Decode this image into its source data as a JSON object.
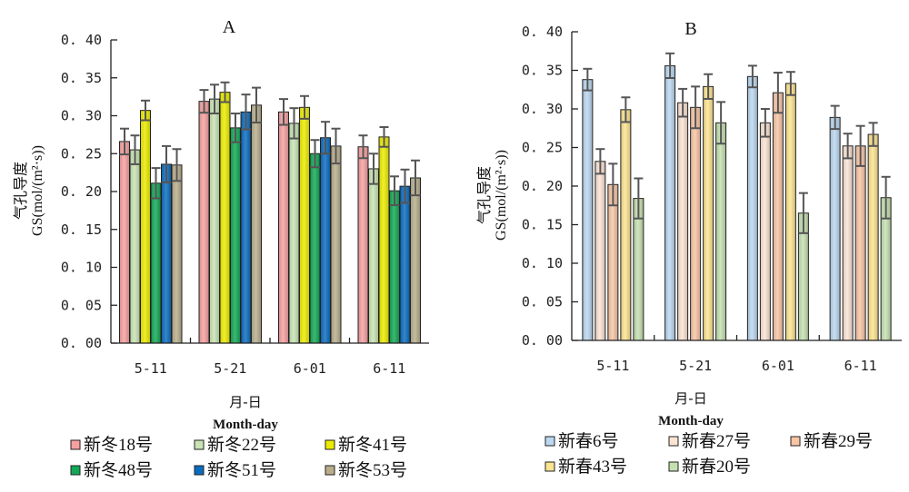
{
  "chart_data": [
    {
      "type": "bar",
      "title": "A",
      "ylabel_cn": "气孔导度",
      "ylabel": "GS(mol/(m²·s))",
      "xlabel_cn": "月-日",
      "xlabel": "Month-day",
      "ylim": [
        0,
        0.4
      ],
      "yticks": [
        "0.00",
        "0.05",
        "0.10",
        "0.15",
        "0.20",
        "0.25",
        "0.30",
        "0.35",
        "0.40"
      ],
      "categories": [
        "5-11",
        "5-21",
        "6-01",
        "6-11"
      ],
      "legend_placement": "bottom",
      "series": [
        {
          "name": "新冬18号",
          "color": "#f7a0a0",
          "values": [
            0.266,
            0.319,
            0.305,
            0.259
          ],
          "errors": [
            0.017,
            0.015,
            0.017,
            0.015
          ]
        },
        {
          "name": "新冬22号",
          "color": "#c8e4b4",
          "values": [
            0.255,
            0.322,
            0.29,
            0.23
          ],
          "errors": [
            0.019,
            0.019,
            0.02,
            0.02
          ]
        },
        {
          "name": "新冬41号",
          "color": "#ecec00",
          "values": [
            0.307,
            0.331,
            0.311,
            0.272
          ],
          "errors": [
            0.013,
            0.013,
            0.015,
            0.013
          ]
        },
        {
          "name": "新冬48号",
          "color": "#12a856",
          "values": [
            0.211,
            0.284,
            0.25,
            0.201
          ],
          "errors": [
            0.02,
            0.019,
            0.018,
            0.019
          ]
        },
        {
          "name": "新冬51号",
          "color": "#0a6cc0",
          "values": [
            0.236,
            0.305,
            0.271,
            0.207
          ],
          "errors": [
            0.024,
            0.023,
            0.021,
            0.022
          ]
        },
        {
          "name": "新冬53号",
          "color": "#b8ae8c",
          "values": [
            0.235,
            0.314,
            0.26,
            0.218
          ],
          "errors": [
            0.021,
            0.023,
            0.023,
            0.023
          ]
        }
      ]
    },
    {
      "type": "bar",
      "title": "B",
      "ylabel_cn": "气孔导度",
      "ylabel": "GS(mol/(m²·s))",
      "xlabel_cn": "月-日",
      "xlabel": "Month-day",
      "ylim": [
        0,
        0.4
      ],
      "yticks": [
        "0.00",
        "0.05",
        "0.10",
        "0.15",
        "0.20",
        "0.25",
        "0.30",
        "0.35",
        "0.40"
      ],
      "categories": [
        "5-11",
        "5-21",
        "6-01",
        "6-11"
      ],
      "legend_placement": "bottom",
      "series": [
        {
          "name": "新春6号",
          "color": "#bcd8f0",
          "values": [
            0.338,
            0.356,
            0.342,
            0.289
          ],
          "errors": [
            0.014,
            0.016,
            0.014,
            0.015
          ]
        },
        {
          "name": "新春27号",
          "color": "#fce4d4",
          "values": [
            0.232,
            0.308,
            0.282,
            0.252
          ],
          "errors": [
            0.016,
            0.018,
            0.018,
            0.016
          ]
        },
        {
          "name": "新春29号",
          "color": "#f8c6a6",
          "values": [
            0.202,
            0.302,
            0.321,
            0.252
          ],
          "errors": [
            0.027,
            0.027,
            0.026,
            0.026
          ]
        },
        {
          "name": "新春43号",
          "color": "#fce490",
          "values": [
            0.299,
            0.329,
            0.333,
            0.267
          ],
          "errors": [
            0.016,
            0.016,
            0.015,
            0.015
          ]
        },
        {
          "name": "新春20号",
          "color": "#c4e0b0",
          "values": [
            0.184,
            0.282,
            0.165,
            0.185
          ],
          "errors": [
            0.026,
            0.027,
            0.026,
            0.027
          ]
        }
      ]
    }
  ]
}
